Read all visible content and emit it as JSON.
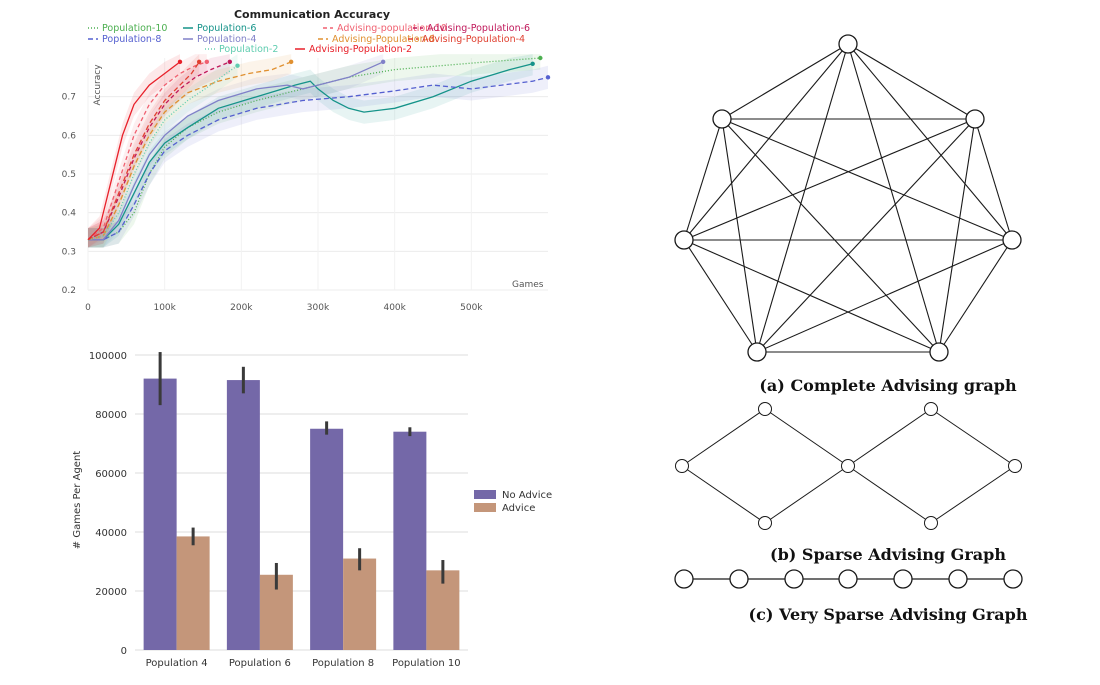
{
  "charts": {
    "line": {
      "title": "Communication Accuracy",
      "xlabel": "Games",
      "ylabel": "Accuracy"
    },
    "bar": {
      "ylabel": "# Games Per Agent"
    }
  },
  "graphs": {
    "complete_caption": "(a) Complete Advising graph",
    "sparse_caption": "(b) Sparse Advising Graph",
    "very_sparse_caption": "(c) Very Sparse Advising Graph"
  },
  "chart_data": [
    {
      "type": "line",
      "title": "Communication Accuracy",
      "xlabel": "Games",
      "ylabel": "Accuracy",
      "xlim": [
        0,
        600000
      ],
      "ylim": [
        0.2,
        0.8
      ],
      "x_ticks": [
        0,
        100000,
        200000,
        300000,
        400000,
        500000
      ],
      "x_tick_labels": [
        "0",
        "100k",
        "200k",
        "300k",
        "400k",
        "500k"
      ],
      "y_ticks": [
        0.2,
        0.3,
        0.4,
        0.5,
        0.6,
        0.7
      ],
      "y_tick_labels": [
        "0.2",
        "0.3",
        "0.4",
        "0.5",
        "0.6",
        "0.7"
      ],
      "grid": true,
      "legend_position": "top",
      "series": [
        {
          "name": "Population-10",
          "color": "#4caf50",
          "dash": "1,2",
          "points": [
            [
              0,
              0.33
            ],
            [
              20000,
              0.33
            ],
            [
              40000,
              0.35
            ],
            [
              60000,
              0.4
            ],
            [
              80000,
              0.5
            ],
            [
              100000,
              0.57
            ],
            [
              130000,
              0.62
            ],
            [
              170000,
              0.66
            ],
            [
              220000,
              0.69
            ],
            [
              280000,
              0.72
            ],
            [
              340000,
              0.75
            ],
            [
              400000,
              0.77
            ],
            [
              460000,
              0.78
            ],
            [
              520000,
              0.79
            ],
            [
              590000,
              0.8
            ]
          ]
        },
        {
          "name": "Population-6",
          "color": "#159389",
          "dash": "",
          "points": [
            [
              0,
              0.33
            ],
            [
              20000,
              0.33
            ],
            [
              40000,
              0.37
            ],
            [
              60000,
              0.45
            ],
            [
              80000,
              0.53
            ],
            [
              100000,
              0.58
            ],
            [
              130000,
              0.62
            ],
            [
              170000,
              0.67
            ],
            [
              220000,
              0.7
            ],
            [
              270000,
              0.73
            ],
            [
              290000,
              0.74
            ],
            [
              300000,
              0.72
            ],
            [
              320000,
              0.69
            ],
            [
              340000,
              0.67
            ],
            [
              360000,
              0.66
            ],
            [
              400000,
              0.67
            ],
            [
              450000,
              0.7
            ],
            [
              500000,
              0.74
            ],
            [
              550000,
              0.77
            ],
            [
              580000,
              0.785
            ]
          ]
        },
        {
          "name": "Advising-population-10",
          "color": "#f06070",
          "dash": "4,3",
          "points": [
            [
              0,
              0.33
            ],
            [
              20000,
              0.36
            ],
            [
              40000,
              0.48
            ],
            [
              60000,
              0.6
            ],
            [
              80000,
              0.68
            ],
            [
              100000,
              0.73
            ],
            [
              120000,
              0.76
            ],
            [
              140000,
              0.78
            ],
            [
              155000,
              0.79
            ]
          ]
        },
        {
          "name": "Advising-Population-6",
          "color": "#c0185a",
          "dash": "4,3",
          "points": [
            [
              0,
              0.33
            ],
            [
              20000,
              0.35
            ],
            [
              40000,
              0.44
            ],
            [
              60000,
              0.54
            ],
            [
              80000,
              0.62
            ],
            [
              100000,
              0.68
            ],
            [
              120000,
              0.72
            ],
            [
              140000,
              0.75
            ],
            [
              160000,
              0.77
            ],
            [
              185000,
              0.79
            ]
          ]
        },
        {
          "name": "Population-8",
          "color": "#5560d0",
          "dash": "5,3",
          "points": [
            [
              0,
              0.33
            ],
            [
              20000,
              0.33
            ],
            [
              40000,
              0.35
            ],
            [
              60000,
              0.42
            ],
            [
              80000,
              0.5
            ],
            [
              100000,
              0.56
            ],
            [
              130000,
              0.6
            ],
            [
              170000,
              0.64
            ],
            [
              220000,
              0.67
            ],
            [
              280000,
              0.69
            ],
            [
              340000,
              0.7
            ],
            [
              400000,
              0.715
            ],
            [
              450000,
              0.73
            ],
            [
              500000,
              0.72
            ],
            [
              540000,
              0.73
            ],
            [
              580000,
              0.74
            ],
            [
              600000,
              0.75
            ]
          ]
        },
        {
          "name": "Population-4",
          "color": "#8080c8",
          "dash": "",
          "points": [
            [
              0,
              0.33
            ],
            [
              20000,
              0.33
            ],
            [
              40000,
              0.38
            ],
            [
              60000,
              0.47
            ],
            [
              80000,
              0.55
            ],
            [
              100000,
              0.6
            ],
            [
              130000,
              0.65
            ],
            [
              170000,
              0.69
            ],
            [
              220000,
              0.72
            ],
            [
              260000,
              0.73
            ],
            [
              280000,
              0.72
            ],
            [
              300000,
              0.73
            ],
            [
              340000,
              0.75
            ],
            [
              385000,
              0.79
            ]
          ]
        },
        {
          "name": "Advising-Population-8",
          "color": "#e09030",
          "dash": "5,3",
          "points": [
            [
              0,
              0.33
            ],
            [
              20000,
              0.34
            ],
            [
              40000,
              0.42
            ],
            [
              60000,
              0.52
            ],
            [
              80000,
              0.6
            ],
            [
              100000,
              0.66
            ],
            [
              130000,
              0.71
            ],
            [
              170000,
              0.74
            ],
            [
              210000,
              0.76
            ],
            [
              240000,
              0.77
            ],
            [
              265000,
              0.79
            ]
          ]
        },
        {
          "name": "Advising-Population-4",
          "color": "#e04030",
          "dash": "5,3",
          "points": [
            [
              0,
              0.33
            ],
            [
              20000,
              0.35
            ],
            [
              40000,
              0.45
            ],
            [
              60000,
              0.55
            ],
            [
              80000,
              0.63
            ],
            [
              100000,
              0.69
            ],
            [
              120000,
              0.73
            ],
            [
              135000,
              0.76
            ],
            [
              145000,
              0.79
            ]
          ]
        },
        {
          "name": "Population-2",
          "color": "#60cdb0",
          "dash": "1,2",
          "points": [
            [
              0,
              0.33
            ],
            [
              20000,
              0.34
            ],
            [
              40000,
              0.4
            ],
            [
              60000,
              0.5
            ],
            [
              80000,
              0.58
            ],
            [
              100000,
              0.64
            ],
            [
              130000,
              0.69
            ],
            [
              160000,
              0.73
            ],
            [
              180000,
              0.76
            ],
            [
              195000,
              0.78
            ]
          ]
        },
        {
          "name": "Advising-Population-2",
          "color": "#e8202a",
          "dash": "",
          "points": [
            [
              0,
              0.33
            ],
            [
              15000,
              0.36
            ],
            [
              30000,
              0.48
            ],
            [
              45000,
              0.6
            ],
            [
              60000,
              0.68
            ],
            [
              80000,
              0.73
            ],
            [
              100000,
              0.76
            ],
            [
              120000,
              0.79
            ]
          ]
        }
      ]
    },
    {
      "type": "bar",
      "ylabel": "# Games Per Agent",
      "ylim": [
        0,
        100000
      ],
      "y_ticks": [
        0,
        20000,
        40000,
        60000,
        80000,
        100000
      ],
      "y_tick_labels": [
        "0",
        "20000",
        "40000",
        "60000",
        "80000",
        "100000"
      ],
      "categories": [
        "Population 4",
        "Population 6",
        "Population 8",
        "Population 10"
      ],
      "legend_position": "right",
      "series": [
        {
          "name": "No Advice",
          "color": "#7468a8",
          "values": [
            92000,
            91500,
            75000,
            74000
          ],
          "err_low": [
            83000,
            87000,
            73000,
            72500
          ],
          "err_high": [
            101000,
            96000,
            77500,
            75500
          ]
        },
        {
          "name": "Advice",
          "color": "#c4967a",
          "values": [
            38500,
            25500,
            31000,
            27000
          ],
          "err_low": [
            35500,
            20500,
            27000,
            22500
          ],
          "err_high": [
            41500,
            29500,
            34500,
            30500
          ]
        }
      ]
    }
  ]
}
